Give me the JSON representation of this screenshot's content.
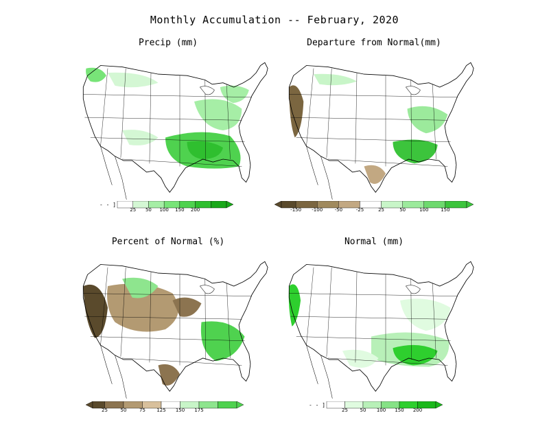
{
  "title": "Monthly Accumulation -- February, 2020",
  "panels": [
    {
      "title": "Precip (mm)",
      "colorbar": {
        "ticks": [
          "25",
          "50",
          "100",
          "150",
          "200"
        ],
        "colors": [
          "#ffffff",
          "#d4f7d4",
          "#a6eea6",
          "#78e478",
          "#4fd24f",
          "#2fbf2f",
          "#1aa81a"
        ],
        "leading_marker": "- - ]"
      }
    },
    {
      "title": "Departure from Normal(mm)",
      "colorbar": {
        "ticks": [
          "-150",
          "-100",
          "-50",
          "-25",
          "25",
          "50",
          "100",
          "150"
        ],
        "colors": [
          "#5a4a2c",
          "#7b6640",
          "#a08a5e",
          "#c2a882",
          "#ffffff",
          "#c8f5c8",
          "#9cea9c",
          "#6ed96e",
          "#3cc43c"
        ]
      }
    },
    {
      "title": "Percent of Normal (%)",
      "colorbar": {
        "ticks": [
          "25",
          "50",
          "75",
          "125",
          "150",
          "175"
        ],
        "colors": [
          "#5a4a2c",
          "#8c7450",
          "#b39a72",
          "#d8c09c",
          "#ffffff",
          "#c8f5c8",
          "#8ee58e",
          "#4fd24f"
        ]
      }
    },
    {
      "title": "Normal (mm)",
      "colorbar": {
        "ticks": [
          "25",
          "50",
          "100",
          "150",
          "200"
        ],
        "colors": [
          "#ffffff",
          "#e0fbe0",
          "#b8f0b8",
          "#86e286",
          "#2ecf2e",
          "#1bb81b"
        ],
        "leading_marker": "- - ]"
      }
    }
  ]
}
